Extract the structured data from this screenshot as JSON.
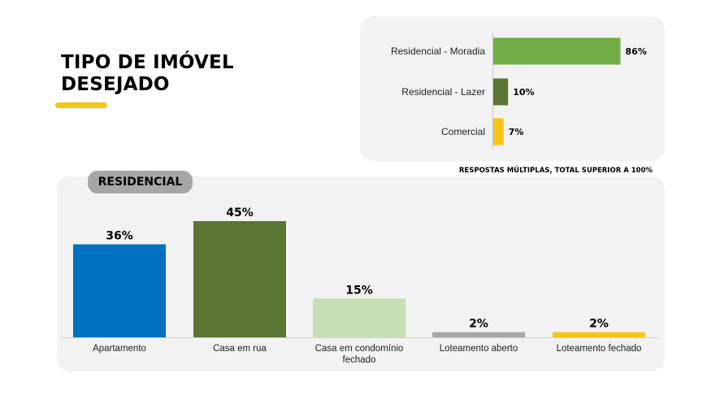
{
  "title": {
    "line1": "TIPO DE IMÓVEL",
    "line2": "DESEJADO"
  },
  "section_badge": "RESIDENCIAL",
  "footnote": "RESPOSTAS MÚLTIPLAS, TOTAL SUPERIOR A 100%",
  "colors": {
    "accent_yellow": "#f5c518",
    "light_green": "#70ad47",
    "dark_green": "#5b7533",
    "pale_green": "#c5e0b4",
    "blue": "#0070c0",
    "gray": "#a6a6a6",
    "panel": "#f2f2f2"
  },
  "chart_data": [
    {
      "type": "bar",
      "orientation": "horizontal",
      "categories": [
        "Residencial - Moradia",
        "Residencial - Lazer",
        "Comercial"
      ],
      "values": [
        86,
        10,
        7
      ],
      "labels": [
        "86%",
        "10%",
        "7%"
      ],
      "colors": [
        "#70ad47",
        "#5b7533",
        "#f5c518"
      ],
      "xlim": [
        0,
        100
      ],
      "grid": false
    },
    {
      "type": "bar",
      "orientation": "vertical",
      "categories": [
        "Apartamento",
        "Casa em rua",
        "Casa em condomínio fechado",
        "Loteamento aberto",
        "Loteamento fechado"
      ],
      "category_lines": [
        [
          "Apartamento"
        ],
        [
          "Casa em rua"
        ],
        [
          "Casa em condomínio",
          "fechado"
        ],
        [
          "Loteamento aberto"
        ],
        [
          "Loteamento fechado"
        ]
      ],
      "values": [
        36,
        45,
        15,
        2,
        2
      ],
      "labels": [
        "36%",
        "45%",
        "15%",
        "2%",
        "2%"
      ],
      "colors": [
        "#0070c0",
        "#5b7533",
        "#c5e0b4",
        "#a6a6a6",
        "#f5c518"
      ],
      "ylim": [
        0,
        50
      ],
      "grid": false
    }
  ]
}
